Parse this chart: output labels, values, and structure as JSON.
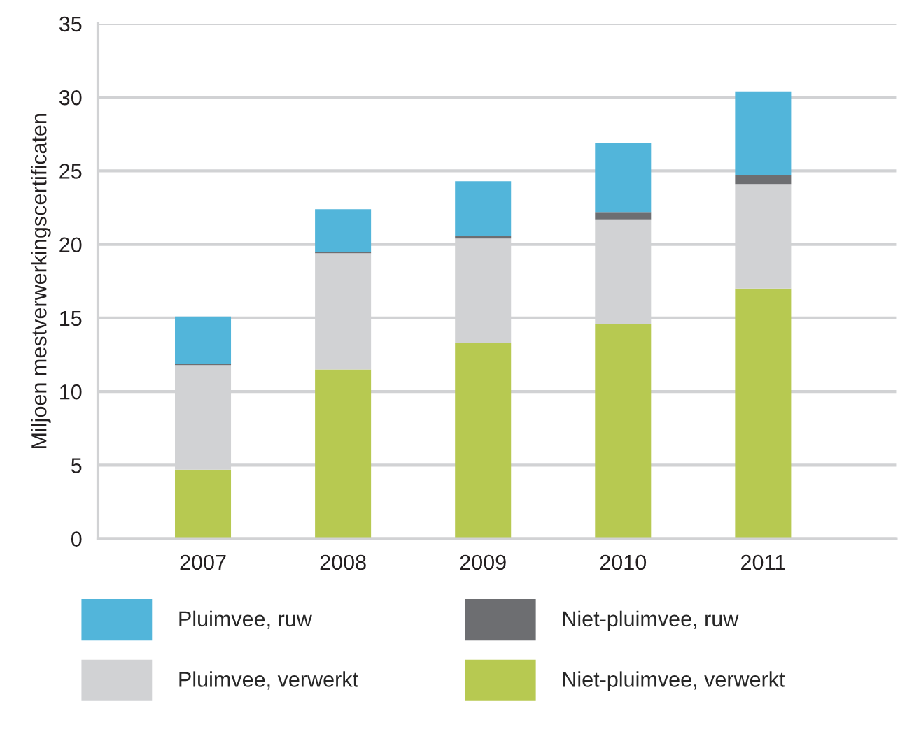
{
  "chart_data": {
    "type": "bar",
    "stacked": true,
    "ylabel": "Miljoen mestverwerkingscertificaten",
    "categories": [
      "2007",
      "2008",
      "2009",
      "2010",
      "2011"
    ],
    "series": [
      {
        "name": "Niet-pluimvee, verwerkt",
        "color": "#b7c951",
        "values": [
          4.7,
          11.5,
          13.3,
          14.6,
          17.0
        ]
      },
      {
        "name": "Pluimvee, verwerkt",
        "color": "#d1d2d4",
        "values": [
          7.1,
          7.9,
          7.1,
          7.1,
          7.1
        ]
      },
      {
        "name": "Niet-pluimvee, ruw",
        "color": "#6d6e71",
        "values": [
          0.1,
          0.1,
          0.2,
          0.5,
          0.6
        ]
      },
      {
        "name": "Pluimvee, ruw",
        "color": "#52b5da",
        "values": [
          3.2,
          2.9,
          3.7,
          4.7,
          5.7
        ]
      }
    ],
    "ylim": [
      0,
      35
    ],
    "yticks": [
      0,
      5,
      10,
      15,
      20,
      25,
      30,
      35
    ],
    "grid": "y",
    "legend": "bottom"
  }
}
